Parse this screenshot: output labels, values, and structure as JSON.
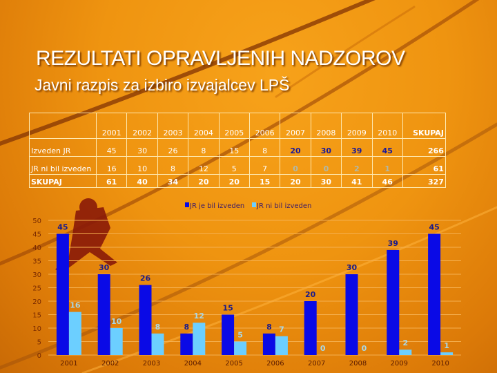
{
  "title": "REZULTATI OPRAVLJENIH NADZOROV",
  "subtitle": "Javni razpis za izbiro izvajalcev LPŠ",
  "table": {
    "headers": [
      "",
      "2001",
      "2002",
      "2003",
      "2004",
      "2005",
      "2006",
      "2007",
      "2008",
      "2009",
      "2010",
      "SKUPAJ"
    ],
    "rows": [
      {
        "label": "Izveden JR",
        "values": [
          "45",
          "30",
          "26",
          "8",
          "15",
          "8",
          "20",
          "30",
          "39",
          "45"
        ],
        "total": "266"
      },
      {
        "label": "JR ni bil izveden",
        "values": [
          "16",
          "10",
          "8",
          "12",
          "5",
          "7",
          "0",
          "0",
          "2",
          "1"
        ],
        "total": "61"
      },
      {
        "label": "SKUPAJ",
        "values": [
          "61",
          "40",
          "34",
          "20",
          "20",
          "15",
          "20",
          "30",
          "41",
          "46"
        ],
        "total": "327"
      }
    ]
  },
  "chart_data": {
    "type": "bar",
    "categories": [
      "2001",
      "2002",
      "2003",
      "2004",
      "2005",
      "2006",
      "2007",
      "2008",
      "2009",
      "2010"
    ],
    "series": [
      {
        "name": "JR je bil izveden",
        "values": [
          45,
          30,
          26,
          8,
          15,
          8,
          20,
          30,
          39,
          45
        ],
        "color": "#0a0ae6"
      },
      {
        "name": "JR ni bil izveden",
        "values": [
          16,
          10,
          8,
          12,
          5,
          7,
          0,
          0,
          2,
          1
        ],
        "color": "#6ccfff"
      }
    ],
    "ylim": [
      0,
      50
    ],
    "yticks": [
      0,
      5,
      10,
      15,
      20,
      25,
      30,
      35,
      40,
      45,
      50
    ],
    "grid": true,
    "legend": "top"
  },
  "colors": {
    "background": "#ef9410",
    "curves": "#8a3a05",
    "label_dark": "#1a1a8a",
    "label_light": "#a8d8e8"
  }
}
